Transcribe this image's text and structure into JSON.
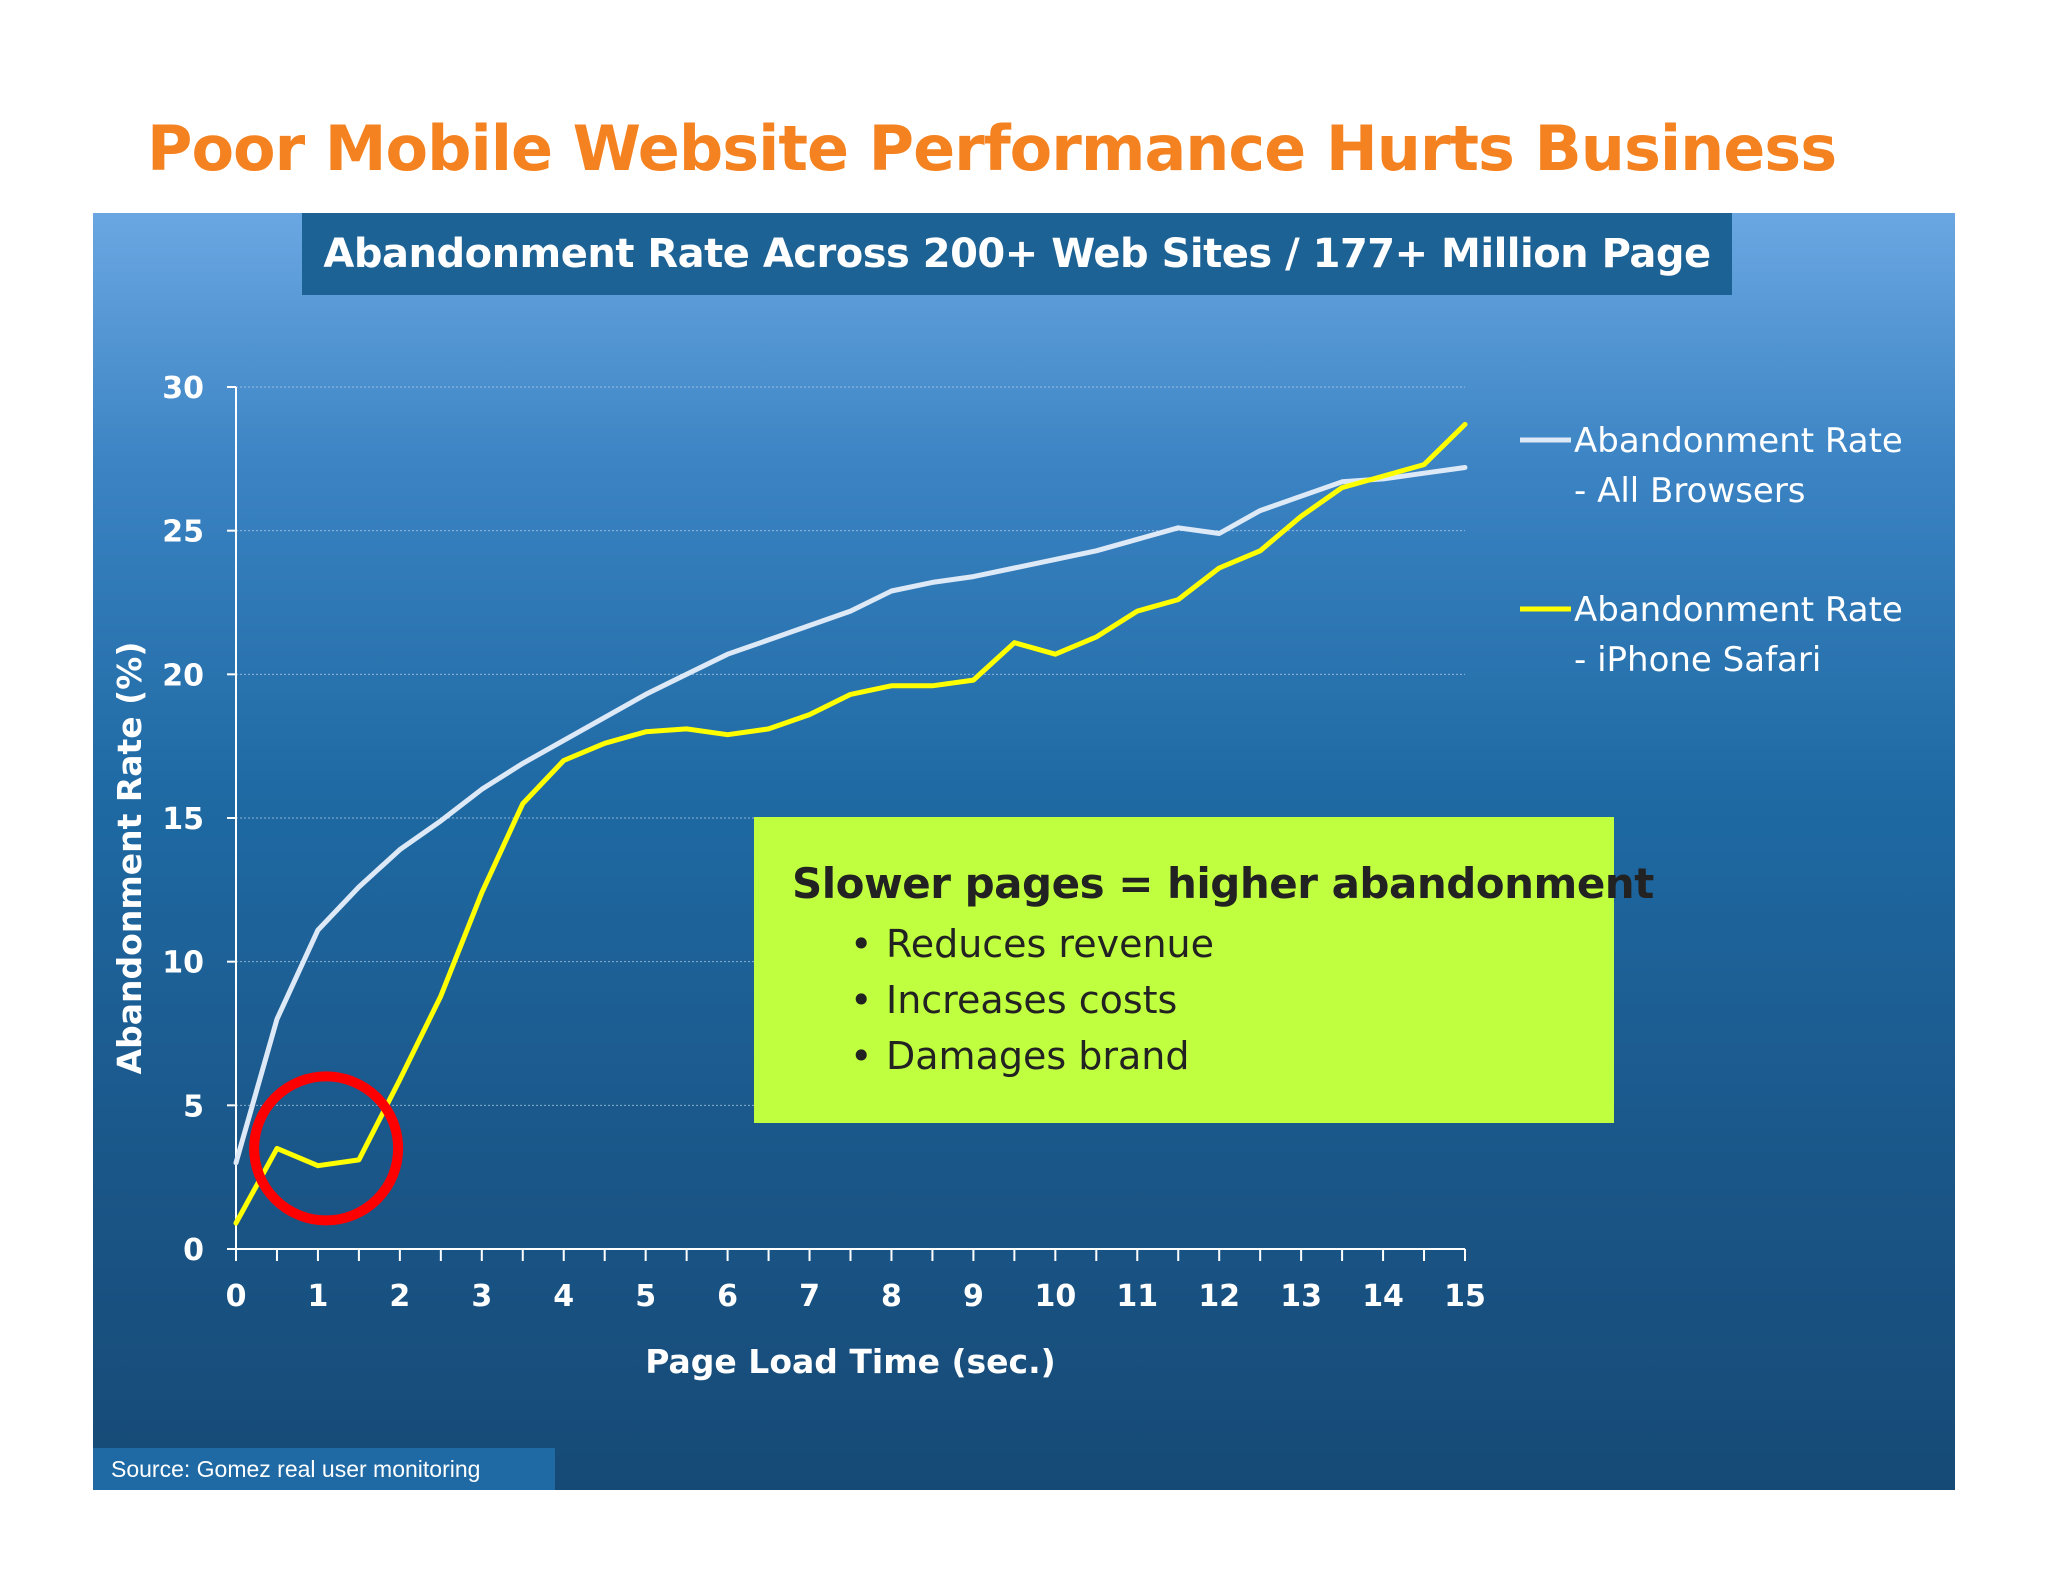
{
  "slide": {
    "title": "Poor Mobile Website Performance Hurts Business",
    "subtitle": "Abandonment Rate Across 200+ Web Sites / 177+ Million Page",
    "source": "Source: Gomez real user monitoring"
  },
  "callout": {
    "heading": "Slower pages = higher abandonment",
    "bullets": [
      "Reduces revenue",
      "Increases costs",
      "Damages brand"
    ]
  },
  "colors": {
    "title": "#f58220",
    "all_browsers": "#dde9f6",
    "iphone_safari": "#ffff00",
    "callout_bg": "#c0ff3f",
    "highlight_circle": "#ff0000"
  },
  "chart_data": {
    "type": "line",
    "xlabel": "Page Load Time (sec.)",
    "ylabel": "Abandonment Rate (%)",
    "xlim": [
      0,
      15
    ],
    "ylim": [
      0,
      30
    ],
    "x_ticks": [
      "0",
      "1",
      "2",
      "3",
      "4",
      "5",
      "6",
      "7",
      "8",
      "9",
      "10",
      "11",
      "12",
      "13",
      "14",
      "15"
    ],
    "y_ticks": [
      "0",
      "5",
      "10",
      "15",
      "20",
      "25",
      "30"
    ],
    "grid": true,
    "legend_position": "right",
    "x": [
      0,
      0.5,
      1,
      1.5,
      2,
      2.5,
      3,
      3.5,
      4,
      4.5,
      5,
      5.5,
      6,
      6.5,
      7,
      7.5,
      8,
      8.5,
      9,
      9.5,
      10,
      10.5,
      11,
      11.5,
      12,
      12.5,
      13,
      13.5,
      14,
      14.5,
      15
    ],
    "series": [
      {
        "name_line1": "Abandonment Rate",
        "name_line2": "- All Browsers",
        "color": "#dde9f6",
        "values": [
          3,
          8,
          11.1,
          12.6,
          13.9,
          14.9,
          16,
          16.9,
          17.7,
          18.5,
          19.3,
          20,
          20.7,
          21.2,
          21.7,
          22.2,
          22.9,
          23.2,
          23.4,
          23.7,
          24,
          24.3,
          24.7,
          25.1,
          24.9,
          25.7,
          26.2,
          26.7,
          26.8,
          27,
          27.2
        ]
      },
      {
        "name_line1": "Abandonment Rate",
        "name_line2": "- iPhone Safari",
        "color": "#ffff00",
        "values": [
          0.9,
          3.5,
          2.9,
          3.1,
          5.9,
          8.8,
          12.4,
          15.5,
          17,
          17.6,
          18,
          18.1,
          17.9,
          18.1,
          18.6,
          19.3,
          19.6,
          19.6,
          19.8,
          21.1,
          20.7,
          21.3,
          22.2,
          22.6,
          23.7,
          24.3,
          25.5,
          26.5,
          26.9,
          27.3,
          28.7
        ]
      }
    ],
    "annotation": {
      "type": "circle",
      "x": 1.1,
      "y": 3.5
    }
  }
}
